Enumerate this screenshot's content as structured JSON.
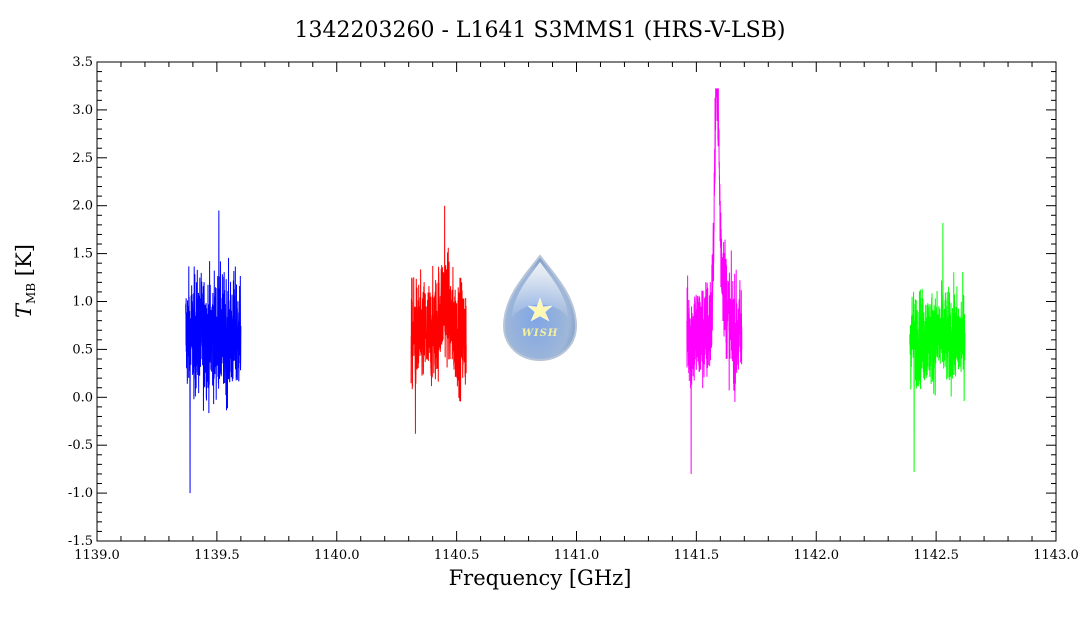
{
  "chart_data": {
    "type": "line",
    "title": "1342203260 - L1641 S3MMS1 (HRS-V-LSB)",
    "xlabel": "Frequency [GHz]",
    "ylabel": {
      "symbol": "T",
      "subscript": "MB",
      "unit": "[K]"
    },
    "xlim": [
      1139.0,
      1143.0
    ],
    "ylim": [
      -1.5,
      3.5
    ],
    "xticks": [
      "1139.0",
      "1139.5",
      "1140.0",
      "1140.5",
      "1141.0",
      "1141.5",
      "1142.0",
      "1142.5",
      "1143.0"
    ],
    "yticks": [
      "-1.5",
      "-1.0",
      "-0.5",
      "0.0",
      "0.5",
      "1.0",
      "1.5",
      "2.0",
      "2.5",
      "3.0",
      "3.5"
    ],
    "grid": false,
    "logo": {
      "text": "WISH"
    },
    "series": [
      {
        "color": "#0000ff",
        "x_range": [
          1139.37,
          1139.6
        ],
        "baseline": 0.65,
        "noise": 0.45,
        "min": -1.0,
        "max": 1.95,
        "features": []
      },
      {
        "color": "#ff0000",
        "x_range": [
          1140.31,
          1140.54
        ],
        "baseline": 0.65,
        "noise": 0.4,
        "min": -0.38,
        "max": 2.0,
        "features": [
          {
            "x": 1140.45,
            "height": 0.35,
            "width": 0.03
          }
        ]
      },
      {
        "color": "#ff00ff",
        "x_range": [
          1141.46,
          1141.69
        ],
        "baseline": 0.65,
        "noise": 0.4,
        "min": -0.8,
        "max": 3.22,
        "features": [
          {
            "x": 1141.585,
            "height": 2.2,
            "width": 0.012
          },
          {
            "x": 1141.6,
            "height": 0.7,
            "width": 0.03
          }
        ]
      },
      {
        "color": "#00ff00",
        "x_range": [
          1142.39,
          1142.62
        ],
        "baseline": 0.62,
        "noise": 0.35,
        "min": -0.78,
        "max": 1.82,
        "features": []
      }
    ]
  }
}
